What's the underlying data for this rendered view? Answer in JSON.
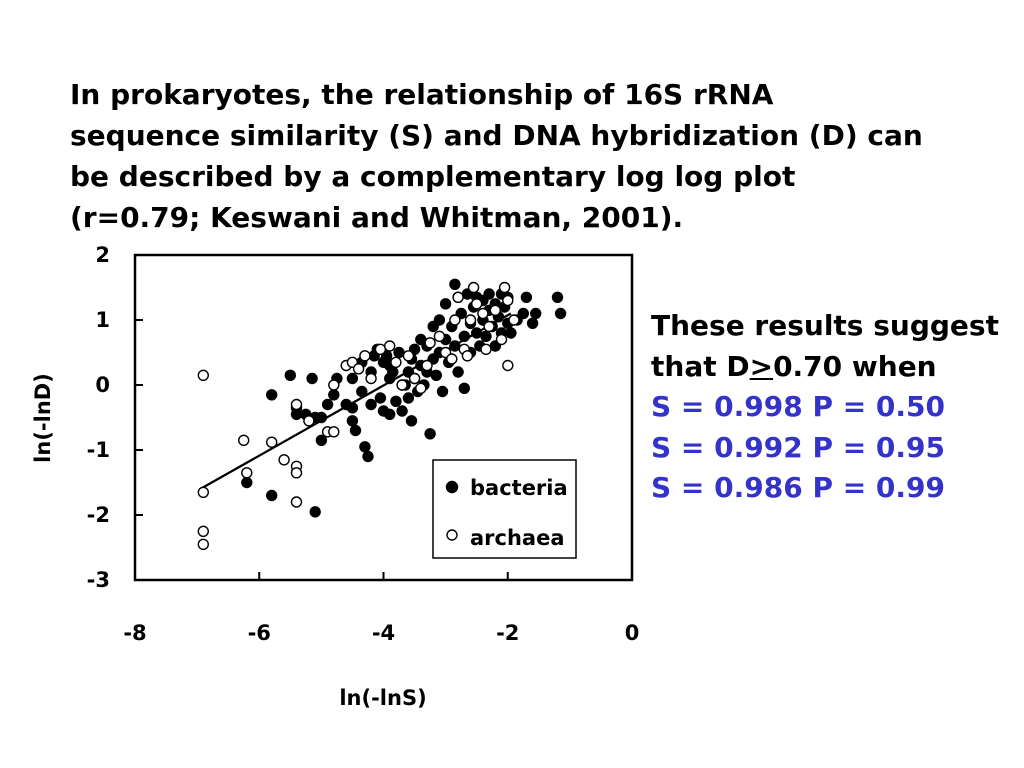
{
  "title_lines": [
    "In prokaryotes, the relationship of 16S rRNA",
    "sequence similarity (S) and DNA hybridization (D) can",
    "be described by a complementary log log plot",
    "(r=0.79; Keswani and Whitman, 2001)."
  ],
  "side": {
    "line1": "These results suggest",
    "line2_pre": "that D",
    "line2_op": ">",
    "line2_post": "0.70 when",
    "rows": [
      "S = 0.998  P = 0.50",
      "S = 0.992  P = 0.95",
      "S = 0.986  P = 0.99"
    ]
  },
  "colors": {
    "accent_blue": "#3333cc",
    "points": "#000000"
  },
  "chart_data": {
    "type": "scatter",
    "xlabel": "ln(-lnS)",
    "ylabel": "ln(-lnD)",
    "xlim": [
      -8,
      0
    ],
    "ylim": [
      -3,
      2
    ],
    "xticks": [
      "-8",
      "-6",
      "-4",
      "-2",
      "0"
    ],
    "yticks": [
      "-3",
      "-2",
      "-1",
      "0",
      "1",
      "2"
    ],
    "legend_position": "bottom-right",
    "series": [
      {
        "name": "bacteria",
        "marker": "filled-circle",
        "points": [
          [
            -6.2,
            -1.5
          ],
          [
            -5.8,
            -1.7
          ],
          [
            -5.8,
            -0.15
          ],
          [
            -5.1,
            -1.95
          ],
          [
            -5.0,
            -0.85
          ],
          [
            -5.1,
            -0.5
          ],
          [
            -5.4,
            -0.45
          ],
          [
            -5.4,
            -0.35
          ],
          [
            -5.25,
            -0.45
          ],
          [
            -5.15,
            0.1
          ],
          [
            -5.0,
            -0.5
          ],
          [
            -4.9,
            -0.3
          ],
          [
            -4.8,
            -0.15
          ],
          [
            -4.75,
            0.1
          ],
          [
            -4.6,
            -0.3
          ],
          [
            -4.5,
            -0.35
          ],
          [
            -4.5,
            -0.55
          ],
          [
            -4.5,
            0.1
          ],
          [
            -4.35,
            -0.1
          ],
          [
            -4.35,
            0.35
          ],
          [
            -4.3,
            -0.95
          ],
          [
            -4.25,
            -1.1
          ],
          [
            -4.2,
            -0.3
          ],
          [
            -4.2,
            0.2
          ],
          [
            -4.15,
            0.45
          ],
          [
            -4.1,
            0.55
          ],
          [
            -4.05,
            -0.2
          ],
          [
            -4.0,
            -0.4
          ],
          [
            -4.0,
            0.35
          ],
          [
            -3.95,
            0.45
          ],
          [
            -3.9,
            0.1
          ],
          [
            -3.9,
            -0.45
          ],
          [
            -3.85,
            0.2
          ],
          [
            -3.8,
            -0.25
          ],
          [
            -3.75,
            0.5
          ],
          [
            -3.7,
            0.0
          ],
          [
            -3.7,
            -0.4
          ],
          [
            -3.6,
            0.2
          ],
          [
            -3.6,
            -0.2
          ],
          [
            -3.55,
            0.4
          ],
          [
            -3.5,
            0.55
          ],
          [
            -3.5,
            0.1
          ],
          [
            -3.45,
            -0.1
          ],
          [
            -3.4,
            0.3
          ],
          [
            -3.4,
            0.7
          ],
          [
            -3.35,
            0.0
          ],
          [
            -3.3,
            0.6
          ],
          [
            -3.3,
            0.2
          ],
          [
            -3.25,
            -0.75
          ],
          [
            -3.2,
            0.4
          ],
          [
            -3.2,
            0.9
          ],
          [
            -3.15,
            0.15
          ],
          [
            -3.1,
            1.0
          ],
          [
            -3.1,
            0.5
          ],
          [
            -3.05,
            -0.1
          ],
          [
            -3.0,
            0.7
          ],
          [
            -3.0,
            1.25
          ],
          [
            -2.95,
            0.35
          ],
          [
            -2.9,
            0.9
          ],
          [
            -2.85,
            0.6
          ],
          [
            -2.85,
            1.55
          ],
          [
            -2.8,
            1.35
          ],
          [
            -2.8,
            0.2
          ],
          [
            -2.75,
            1.1
          ],
          [
            -2.7,
            0.75
          ],
          [
            -2.7,
            -0.05
          ],
          [
            -2.65,
            1.4
          ],
          [
            -2.6,
            0.95
          ],
          [
            -2.6,
            0.5
          ],
          [
            -2.55,
            1.2
          ],
          [
            -2.5,
            0.8
          ],
          [
            -2.5,
            1.35
          ],
          [
            -2.45,
            0.6
          ],
          [
            -2.4,
            1.0
          ],
          [
            -2.4,
            1.3
          ],
          [
            -2.35,
            0.75
          ],
          [
            -2.3,
            1.15
          ],
          [
            -2.3,
            1.4
          ],
          [
            -2.25,
            0.9
          ],
          [
            -2.2,
            1.25
          ],
          [
            -2.2,
            0.6
          ],
          [
            -2.15,
            1.05
          ],
          [
            -2.1,
            1.4
          ],
          [
            -2.1,
            0.8
          ],
          [
            -2.05,
            1.2
          ],
          [
            -2.0,
            0.95
          ],
          [
            -2.0,
            1.35
          ],
          [
            -1.95,
            0.8
          ],
          [
            -1.85,
            1.0
          ],
          [
            -1.75,
            1.1
          ],
          [
            -1.7,
            1.35
          ],
          [
            -1.6,
            0.95
          ],
          [
            -1.55,
            1.1
          ],
          [
            -1.2,
            1.35
          ],
          [
            -1.15,
            1.1
          ],
          [
            -3.55,
            -0.55
          ],
          [
            -3.65,
            0.0
          ],
          [
            -4.45,
            -0.7
          ],
          [
            -5.5,
            0.15
          ],
          [
            -3.9,
            0.3
          ]
        ]
      },
      {
        "name": "archaea",
        "marker": "open-circle",
        "points": [
          [
            -6.9,
            0.15
          ],
          [
            -6.9,
            -1.65
          ],
          [
            -6.9,
            -2.25
          ],
          [
            -6.9,
            -2.45
          ],
          [
            -6.25,
            -0.85
          ],
          [
            -6.2,
            -1.35
          ],
          [
            -5.8,
            -0.88
          ],
          [
            -5.6,
            -1.15
          ],
          [
            -5.4,
            -1.25
          ],
          [
            -5.4,
            -1.35
          ],
          [
            -5.4,
            -1.8
          ],
          [
            -5.4,
            -0.3
          ],
          [
            -5.2,
            -0.55
          ],
          [
            -4.9,
            -0.72
          ],
          [
            -4.8,
            -0.72
          ],
          [
            -4.8,
            0.0
          ],
          [
            -4.6,
            0.3
          ],
          [
            -4.5,
            0.35
          ],
          [
            -4.4,
            0.25
          ],
          [
            -4.3,
            0.45
          ],
          [
            -4.2,
            0.1
          ],
          [
            -4.05,
            0.55
          ],
          [
            -3.9,
            0.6
          ],
          [
            -3.8,
            0.35
          ],
          [
            -3.7,
            0.0
          ],
          [
            -3.6,
            0.45
          ],
          [
            -3.5,
            0.1
          ],
          [
            -3.4,
            -0.05
          ],
          [
            -3.3,
            0.3
          ],
          [
            -3.1,
            0.75
          ],
          [
            -3.0,
            0.5
          ],
          [
            -2.9,
            0.4
          ],
          [
            -2.85,
            1.0
          ],
          [
            -2.8,
            1.35
          ],
          [
            -2.7,
            0.55
          ],
          [
            -2.6,
            1.0
          ],
          [
            -2.55,
            1.5
          ],
          [
            -2.5,
            1.25
          ],
          [
            -2.4,
            1.1
          ],
          [
            -2.35,
            0.55
          ],
          [
            -2.3,
            0.9
          ],
          [
            -2.2,
            1.15
          ],
          [
            -2.1,
            0.7
          ],
          [
            -2.05,
            1.5
          ],
          [
            -2.0,
            1.3
          ],
          [
            -2.0,
            0.3
          ],
          [
            -1.9,
            1.0
          ],
          [
            -2.65,
            0.45
          ],
          [
            -3.25,
            0.65
          ]
        ]
      }
    ],
    "trendline": {
      "from": [
        -6.95,
        -1.6
      ],
      "to": [
        -1.95,
        1.1
      ]
    }
  }
}
